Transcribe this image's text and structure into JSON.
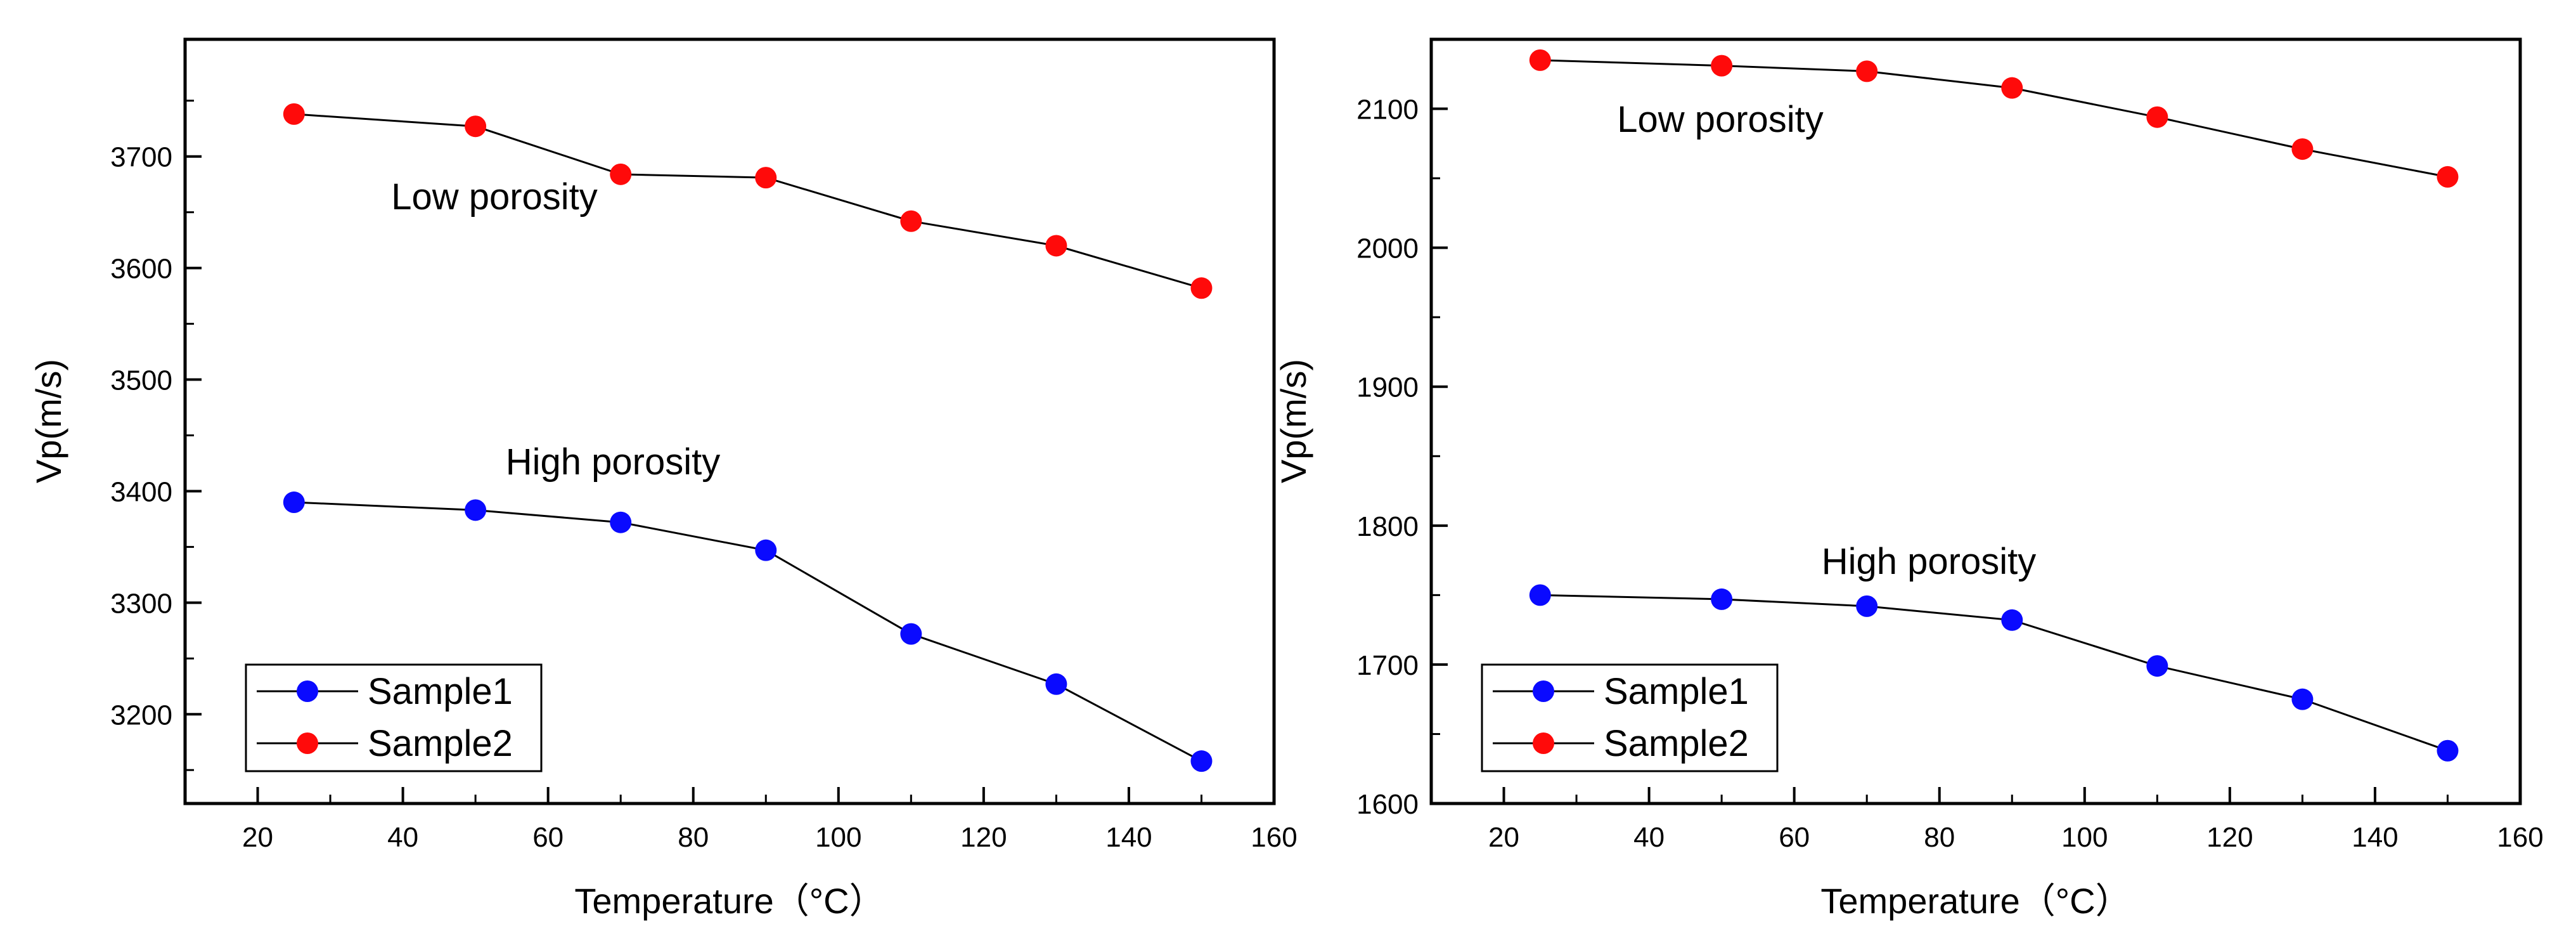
{
  "colors": {
    "sample1": "#0a0aff",
    "sample2": "#ff0a0a",
    "line": "#000000",
    "background": "#ffffff"
  },
  "chart_data": [
    {
      "type": "line",
      "x": [
        25,
        50,
        70,
        90,
        110,
        130,
        150
      ],
      "series": [
        {
          "name": "Sample1",
          "values": [
            3390,
            3383,
            3372,
            3347,
            3272,
            3227,
            3158
          ]
        },
        {
          "name": "Sample2",
          "values": [
            3738,
            3727,
            3684,
            3681,
            3642,
            3620,
            3582
          ]
        }
      ],
      "xlabel": "Temperature（°C）",
      "ylabel": "Vp(m/s)",
      "xlim": [
        10,
        160
      ],
      "ylim": [
        3120,
        3805
      ],
      "xticks": [
        20,
        40,
        60,
        80,
        100,
        120,
        140,
        160
      ],
      "yticks": [
        3200,
        3300,
        3400,
        3500,
        3600,
        3700
      ],
      "annotations": [
        {
          "text": "Low porosity",
          "x": 57,
          "y": 3637,
          "series": "Sample2"
        },
        {
          "text": "High porosity",
          "x": 72,
          "y": 3412,
          "series": "Sample1"
        }
      ],
      "legend": {
        "position": "bottom-left",
        "entries": [
          "Sample1",
          "Sample2"
        ]
      }
    },
    {
      "type": "line",
      "x": [
        25,
        50,
        70,
        90,
        110,
        130,
        150
      ],
      "series": [
        {
          "name": "Sample1",
          "values": [
            1750,
            1747,
            1742,
            1732,
            1699,
            1675,
            1638
          ]
        },
        {
          "name": "Sample2",
          "values": [
            2135,
            2131,
            2127,
            2115,
            2094,
            2071,
            2051
          ]
        }
      ],
      "xlabel": "Temperature（°C）",
      "ylabel": "Vp(m/s)",
      "xlim": [
        10,
        160
      ],
      "ylim": [
        1600,
        2150
      ],
      "xticks": [
        20,
        40,
        60,
        80,
        100,
        120,
        140,
        160
      ],
      "yticks": [
        1600,
        1700,
        1800,
        1900,
        2000,
        2100
      ],
      "annotations": [
        {
          "text": "Low porosity",
          "x": 43,
          "y": 2108,
          "series": "Sample2"
        },
        {
          "text": "High porosity",
          "x": 77,
          "y": 1770,
          "series": "Sample1"
        }
      ],
      "legend": {
        "position": "bottom-left",
        "entries": [
          "Sample1",
          "Sample2"
        ]
      }
    }
  ]
}
